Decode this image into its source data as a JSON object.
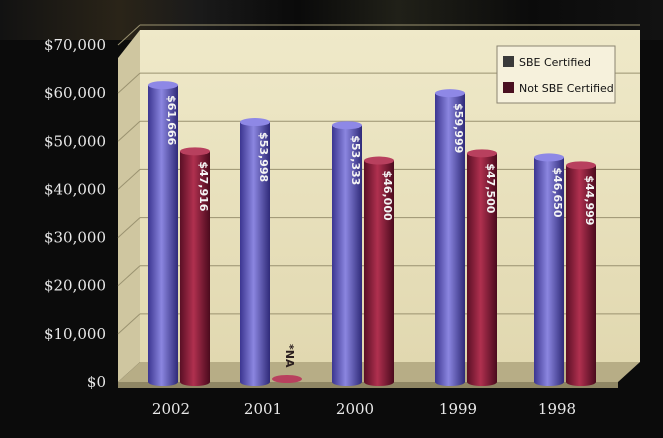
{
  "chart_data": {
    "type": "bar",
    "categories": [
      "2002",
      "2001",
      "2000",
      "1999",
      "1998"
    ],
    "series": [
      {
        "name": "SBE Certified",
        "values": [
          61666,
          53998,
          53333,
          59999,
          46650
        ],
        "labels": [
          "$61,666",
          "$53,998",
          "$53,333",
          "$59,999",
          "$46,650"
        ],
        "color": "#5b55b5"
      },
      {
        "name": "Not SBE Certified",
        "values": [
          47916,
          null,
          46000,
          47500,
          44999
        ],
        "labels": [
          "$47,916",
          "*NA",
          "$46,000",
          "$47,500",
          "$44,999"
        ],
        "color": "#8a1c3a"
      }
    ],
    "y_ticks": [
      "$0",
      "$10,000",
      "$20,000",
      "$30,000",
      "$40,000",
      "$50,000",
      "$60,000",
      "$70,000"
    ],
    "ylim": [
      0,
      70000
    ],
    "grid": true,
    "legend_position": "top-right",
    "title": "",
    "xlabel": "",
    "ylabel": ""
  }
}
